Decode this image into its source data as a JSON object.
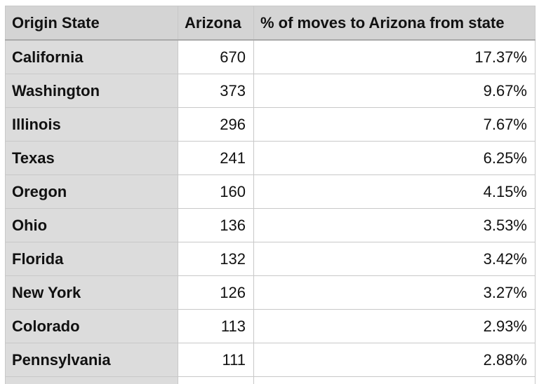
{
  "chart_data": {
    "type": "table",
    "columns": [
      "Origin State",
      "Arizona",
      "% of moves to Arizona from state"
    ],
    "rows": [
      {
        "state": "California",
        "arizona": "670",
        "pct": "17.37%"
      },
      {
        "state": "Washington",
        "arizona": "373",
        "pct": "9.67%"
      },
      {
        "state": "Illinois",
        "arizona": "296",
        "pct": "7.67%"
      },
      {
        "state": "Texas",
        "arizona": "241",
        "pct": "6.25%"
      },
      {
        "state": "Oregon",
        "arizona": "160",
        "pct": "4.15%"
      },
      {
        "state": "Ohio",
        "arizona": "136",
        "pct": "3.53%"
      },
      {
        "state": "Florida",
        "arizona": "132",
        "pct": "3.42%"
      },
      {
        "state": "New York",
        "arizona": "126",
        "pct": "3.27%"
      },
      {
        "state": "Colorado",
        "arizona": "113",
        "pct": "2.93%"
      },
      {
        "state": "Pennsylvania",
        "arizona": "111",
        "pct": "2.88%"
      }
    ]
  },
  "colors": {
    "header_bg": "#d4d4d4",
    "state_col_bg": "#dcdcdc",
    "cell_bg": "#ffffff",
    "grid": "#c8c8c8"
  }
}
